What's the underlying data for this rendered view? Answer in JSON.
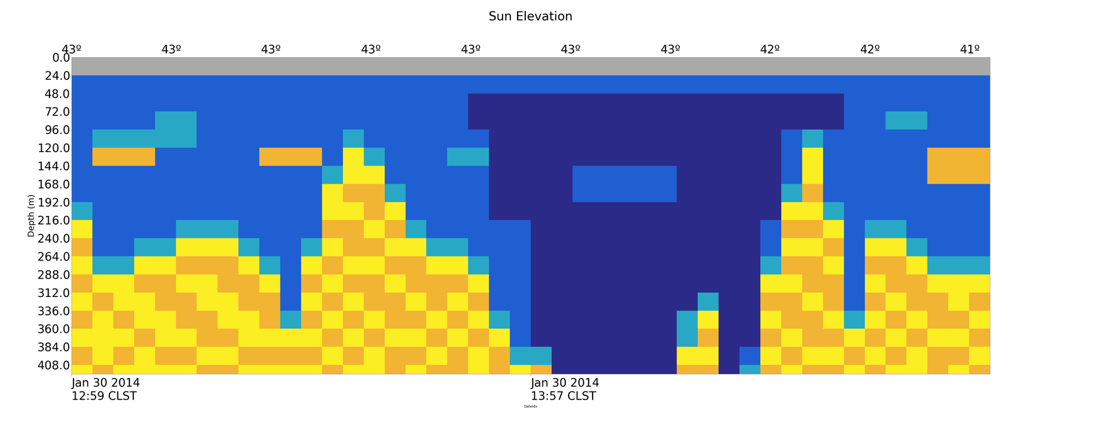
{
  "chart_data": {
    "type": "heatmap",
    "title": "Sun Elevation",
    "xlabel": "DateIdx",
    "ylabel": "Depth (m)",
    "xlim": [
      0,
      44
    ],
    "ylim": [
      420,
      0
    ],
    "xticks": [
      {
        "value": 0,
        "label": "Jan 30 2014\n12:59 CLST"
      },
      {
        "value": 22,
        "label": "Jan 30 2014\n13:57 CLST"
      }
    ],
    "x2ticks": [
      {
        "value": 0,
        "label": "43º"
      },
      {
        "value": 4.78,
        "label": "43º"
      },
      {
        "value": 9.56,
        "label": "43º"
      },
      {
        "value": 14.35,
        "label": "43º"
      },
      {
        "value": 19.13,
        "label": "43º"
      },
      {
        "value": 23.91,
        "label": "43º"
      },
      {
        "value": 28.69,
        "label": "43º"
      },
      {
        "value": 33.47,
        "label": "42º"
      },
      {
        "value": 38.26,
        "label": "42º"
      },
      {
        "value": 43.04,
        "label": "41º"
      }
    ],
    "yticks": [
      {
        "value": 0,
        "label": "0.0"
      },
      {
        "value": 24,
        "label": "24.0"
      },
      {
        "value": 48,
        "label": "48.0"
      },
      {
        "value": 72,
        "label": "72.0"
      },
      {
        "value": 96,
        "label": "96.0"
      },
      {
        "value": 120,
        "label": "120.0"
      },
      {
        "value": 144,
        "label": "144.0"
      },
      {
        "value": 168,
        "label": "168.0"
      },
      {
        "value": 192,
        "label": "192.0"
      },
      {
        "value": 216,
        "label": "216.0"
      },
      {
        "value": 240,
        "label": "240.0"
      },
      {
        "value": 264,
        "label": "264.0"
      },
      {
        "value": 288,
        "label": "288.0"
      },
      {
        "value": 312,
        "label": "312.0"
      },
      {
        "value": 336,
        "label": "336.0"
      },
      {
        "value": 360,
        "label": "360.0"
      },
      {
        "value": 384,
        "label": "384.0"
      },
      {
        "value": 408,
        "label": "408.0"
      }
    ],
    "x_edges": [
      0,
      1,
      2,
      3,
      4,
      5,
      6,
      7,
      8,
      9,
      10,
      11,
      12,
      13,
      14,
      15,
      16,
      17,
      18,
      19,
      20,
      21,
      22,
      23,
      24,
      25,
      26,
      27,
      28,
      29,
      30,
      31,
      32,
      33,
      34,
      35,
      36,
      37,
      38,
      39,
      40,
      41,
      42,
      43,
      44
    ],
    "y_edges": [
      0,
      24,
      48,
      72,
      96,
      120,
      144,
      168,
      192,
      216,
      240,
      264,
      288,
      312,
      336,
      360,
      384,
      408,
      432
    ],
    "cells": [
      [
        null,
        null,
        null,
        null,
        null,
        null,
        null,
        null,
        null,
        null,
        null,
        null,
        null,
        null,
        null,
        null,
        null,
        null,
        null,
        null,
        null,
        null,
        null,
        null,
        null,
        null,
        null,
        null,
        null,
        null,
        null,
        null,
        null,
        null,
        null,
        null,
        null,
        null,
        null,
        null,
        null,
        null,
        null,
        null
      ],
      [
        1,
        1,
        1,
        1,
        1,
        1,
        1,
        1,
        1,
        1,
        1,
        1,
        1,
        1,
        1,
        1,
        1,
        1,
        1,
        1,
        1,
        1,
        1,
        1,
        1,
        1,
        1,
        1,
        1,
        1,
        1,
        1,
        1,
        1,
        1,
        1,
        1,
        1,
        1,
        1,
        1,
        1,
        1,
        1
      ],
      [
        1,
        1,
        1,
        1,
        1,
        1,
        1,
        1,
        1,
        1,
        1,
        1,
        1,
        1,
        1,
        1,
        1,
        1,
        1,
        0,
        0,
        0,
        0,
        0,
        0,
        0,
        0,
        0,
        0,
        0,
        0,
        0,
        0,
        0,
        0,
        0,
        0,
        1,
        1,
        1,
        1,
        1,
        1,
        1
      ],
      [
        1,
        1,
        1,
        1,
        2,
        2,
        1,
        1,
        1,
        1,
        1,
        1,
        1,
        1,
        1,
        1,
        1,
        1,
        1,
        0,
        0,
        0,
        0,
        0,
        0,
        0,
        0,
        0,
        0,
        0,
        0,
        0,
        0,
        0,
        0,
        0,
        0,
        1,
        1,
        2,
        2,
        1,
        1,
        1
      ],
      [
        1,
        2,
        2,
        2,
        2,
        2,
        1,
        1,
        1,
        1,
        1,
        1,
        1,
        2,
        1,
        1,
        1,
        1,
        1,
        1,
        0,
        0,
        0,
        0,
        0,
        0,
        0,
        0,
        0,
        0,
        0,
        0,
        0,
        0,
        1,
        2,
        1,
        1,
        1,
        1,
        1,
        1,
        1,
        1
      ],
      [
        1,
        3,
        3,
        3,
        1,
        1,
        1,
        1,
        1,
        3,
        3,
        3,
        1,
        4,
        2,
        1,
        1,
        1,
        2,
        2,
        0,
        0,
        0,
        0,
        0,
        0,
        0,
        0,
        0,
        0,
        0,
        0,
        0,
        0,
        1,
        4,
        1,
        1,
        1,
        1,
        1,
        3,
        3,
        3
      ],
      [
        1,
        1,
        1,
        1,
        1,
        1,
        1,
        1,
        1,
        1,
        1,
        1,
        2,
        4,
        4,
        1,
        1,
        1,
        1,
        1,
        0,
        0,
        0,
        0,
        1,
        1,
        1,
        1,
        1,
        0,
        0,
        0,
        0,
        0,
        1,
        4,
        1,
        1,
        1,
        1,
        1,
        3,
        3,
        3
      ],
      [
        1,
        1,
        1,
        1,
        1,
        1,
        1,
        1,
        1,
        1,
        1,
        1,
        4,
        3,
        3,
        2,
        1,
        1,
        1,
        1,
        0,
        0,
        0,
        0,
        1,
        1,
        1,
        1,
        1,
        0,
        0,
        0,
        0,
        0,
        2,
        3,
        1,
        1,
        1,
        1,
        1,
        1,
        1,
        1
      ],
      [
        2,
        1,
        1,
        1,
        1,
        1,
        1,
        1,
        1,
        1,
        1,
        1,
        4,
        4,
        3,
        4,
        1,
        1,
        1,
        1,
        0,
        0,
        0,
        0,
        0,
        0,
        0,
        0,
        0,
        0,
        0,
        0,
        0,
        0,
        4,
        4,
        2,
        1,
        1,
        1,
        1,
        1,
        1,
        1
      ],
      [
        4,
        1,
        1,
        1,
        1,
        2,
        2,
        2,
        1,
        1,
        1,
        1,
        3,
        3,
        4,
        3,
        2,
        1,
        1,
        1,
        1,
        1,
        0,
        0,
        0,
        0,
        0,
        0,
        0,
        0,
        0,
        0,
        0,
        1,
        3,
        3,
        4,
        1,
        2,
        2,
        1,
        1,
        1,
        1
      ],
      [
        3,
        1,
        1,
        2,
        2,
        4,
        4,
        4,
        2,
        1,
        1,
        2,
        4,
        3,
        3,
        4,
        4,
        2,
        2,
        1,
        1,
        1,
        0,
        0,
        0,
        0,
        0,
        0,
        0,
        0,
        0,
        0,
        0,
        1,
        4,
        4,
        3,
        1,
        4,
        4,
        2,
        1,
        1,
        1
      ],
      [
        4,
        2,
        2,
        4,
        4,
        3,
        3,
        3,
        4,
        2,
        1,
        4,
        3,
        4,
        4,
        3,
        3,
        4,
        4,
        2,
        1,
        1,
        0,
        0,
        0,
        0,
        0,
        0,
        0,
        0,
        0,
        0,
        0,
        2,
        3,
        3,
        4,
        1,
        3,
        3,
        4,
        2,
        2,
        2
      ],
      [
        3,
        4,
        4,
        3,
        3,
        4,
        4,
        3,
        3,
        4,
        1,
        3,
        4,
        3,
        3,
        4,
        3,
        3,
        3,
        4,
        1,
        1,
        0,
        0,
        0,
        0,
        0,
        0,
        0,
        0,
        0,
        0,
        0,
        4,
        4,
        3,
        3,
        1,
        4,
        3,
        3,
        4,
        4,
        4
      ],
      [
        4,
        3,
        4,
        4,
        3,
        3,
        4,
        4,
        3,
        3,
        1,
        4,
        3,
        4,
        3,
        3,
        4,
        3,
        4,
        3,
        1,
        1,
        0,
        0,
        0,
        0,
        0,
        0,
        0,
        0,
        2,
        0,
        0,
        3,
        3,
        4,
        3,
        1,
        3,
        4,
        3,
        3,
        4,
        3
      ],
      [
        3,
        4,
        3,
        4,
        4,
        3,
        3,
        4,
        4,
        3,
        2,
        3,
        4,
        3,
        4,
        3,
        3,
        4,
        3,
        4,
        2,
        1,
        0,
        0,
        0,
        0,
        0,
        0,
        0,
        2,
        4,
        0,
        0,
        4,
        3,
        3,
        4,
        2,
        4,
        3,
        4,
        3,
        3,
        4
      ],
      [
        4,
        4,
        4,
        3,
        4,
        4,
        3,
        3,
        4,
        4,
        4,
        4,
        3,
        4,
        3,
        4,
        4,
        3,
        4,
        3,
        4,
        1,
        0,
        0,
        0,
        0,
        0,
        0,
        0,
        2,
        3,
        0,
        0,
        3,
        4,
        3,
        3,
        4,
        3,
        4,
        3,
        4,
        4,
        3
      ],
      [
        3,
        4,
        3,
        4,
        3,
        3,
        4,
        4,
        3,
        3,
        3,
        3,
        4,
        3,
        4,
        3,
        3,
        4,
        3,
        4,
        3,
        2,
        2,
        0,
        0,
        0,
        0,
        0,
        0,
        4,
        4,
        0,
        1,
        4,
        3,
        4,
        4,
        3,
        4,
        3,
        4,
        3,
        3,
        4
      ],
      [
        4,
        3,
        4,
        4,
        4,
        4,
        3,
        3,
        4,
        4,
        4,
        4,
        3,
        4,
        4,
        3,
        4,
        3,
        3,
        4,
        3,
        4,
        3,
        0,
        0,
        0,
        0,
        0,
        0,
        3,
        3,
        0,
        2,
        3,
        4,
        3,
        3,
        4,
        3,
        4,
        4,
        3,
        4,
        3
      ]
    ]
  }
}
